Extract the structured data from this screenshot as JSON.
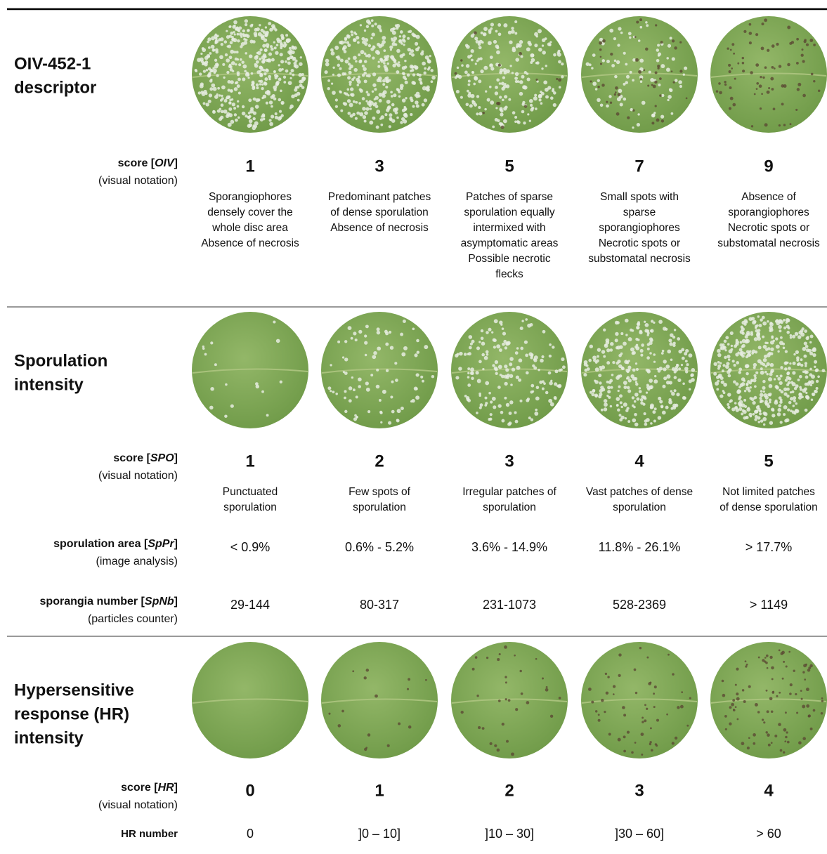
{
  "sections": [
    {
      "title": [
        "OIV-452-1",
        "descriptor"
      ],
      "rows": [
        {
          "label": [
            "score [",
            "OIV",
            "]"
          ],
          "sublabel": "(visual notation)",
          "cells": [
            1,
            3,
            5,
            7,
            9
          ],
          "descriptions": [
            [
              "Sporangiophores",
              "densely cover the",
              "whole disc area",
              "Absence of necrosis"
            ],
            [
              "Predominant patches",
              "of dense sporulation",
              "Absence of necrosis"
            ],
            [
              "Patches of sparse",
              "sporulation equally",
              "intermixed with",
              "asymptomatic areas",
              "Possible necrotic",
              "flecks"
            ],
            [
              "Small spots with",
              "sparse",
              "sporangiophores",
              "Necrotic spots or",
              "substomatal necrosis"
            ],
            [
              "Absence of",
              "sporangiophores",
              "Necrotic spots or",
              "substomatal necrosis"
            ]
          ]
        }
      ]
    },
    {
      "title": [
        "Sporulation",
        "intensity"
      ],
      "rows": [
        {
          "label": [
            "score [",
            "SPO",
            "]"
          ],
          "sublabel": "(visual notation)",
          "cells": [
            1,
            2,
            3,
            4,
            5
          ],
          "descriptions": [
            [
              "Punctuated",
              "sporulation"
            ],
            [
              "Few spots of",
              "sporulation"
            ],
            [
              "Irregular patches of",
              "sporulation"
            ],
            [
              "Vast patches of dense",
              "sporulation"
            ],
            [
              "Not limited patches",
              "of dense sporulation"
            ]
          ]
        },
        {
          "label": [
            "sporulation area [",
            "SpPr",
            "]"
          ],
          "sublabel": "(image analysis)",
          "cells": [
            "< 0.9%",
            "0.6% - 5.2%",
            "3.6% - 14.9%",
            "11.8% - 26.1%",
            "> 17.7%"
          ]
        },
        {
          "label": [
            "sporangia number [",
            "SpNb",
            "]"
          ],
          "sublabel": "(particles counter)",
          "cells": [
            "29-144",
            "80-317",
            "231-1073",
            "528-2369",
            "> 1149"
          ]
        }
      ]
    },
    {
      "title": [
        "Hypersensitive",
        "response (HR)",
        "intensity"
      ],
      "rows": [
        {
          "label": [
            "score [",
            "HR",
            "]"
          ],
          "sublabel": "(visual notation)",
          "cells": [
            0,
            1,
            2,
            3,
            4
          ]
        },
        {
          "label": [
            "HR number"
          ],
          "cells": [
            0,
            "]0 – 10]",
            "]10 – 30]",
            "]30 – 60]",
            "> 60"
          ]
        }
      ]
    }
  ]
}
